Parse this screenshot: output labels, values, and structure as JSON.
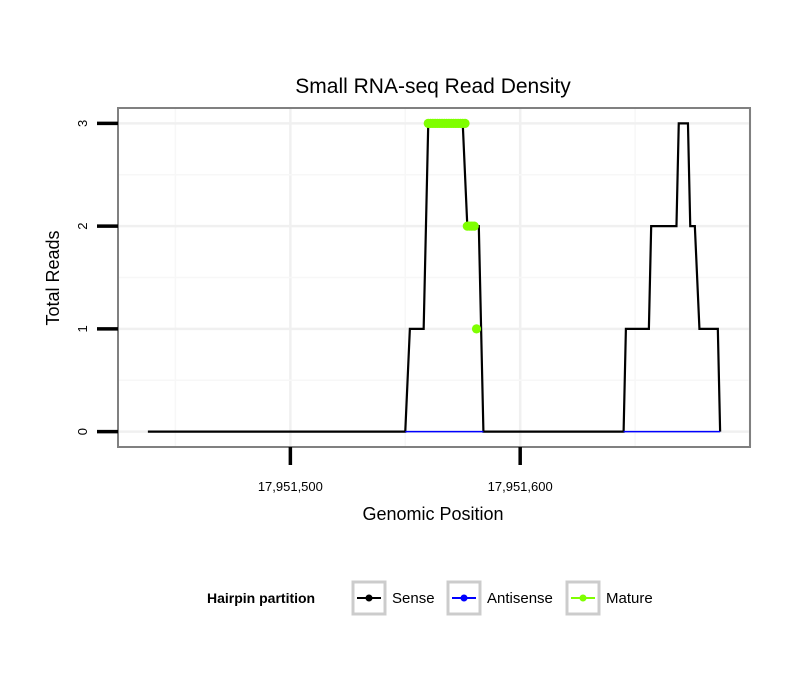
{
  "chart_data": {
    "type": "line",
    "title": "Small RNA-seq Read Density",
    "xlabel": "Genomic Position",
    "ylabel": "Total Reads",
    "xlim": [
      17951425,
      17951700
    ],
    "ylim": [
      -0.15,
      3.15
    ],
    "x_ticks": [
      17951500,
      17951600
    ],
    "x_tick_labels": [
      "17,951,500",
      "17,951,600"
    ],
    "y_ticks": [
      0,
      1,
      2,
      3
    ],
    "y_tick_labels": [
      "0",
      "1",
      "2",
      "3"
    ],
    "grid": true,
    "legend": {
      "title": "Hairpin partition",
      "position": "bottom",
      "entries": [
        "Sense",
        "Antisense",
        "Mature"
      ]
    },
    "series": [
      {
        "name": "Sense",
        "color": "#000000",
        "points": [
          [
            17951438,
            0
          ],
          [
            17951550,
            0
          ],
          [
            17951552,
            1
          ],
          [
            17951558,
            1
          ],
          [
            17951560,
            3
          ],
          [
            17951575,
            3
          ],
          [
            17951577,
            2
          ],
          [
            17951582,
            2
          ],
          [
            17951584,
            0
          ],
          [
            17951645,
            0
          ],
          [
            17951646,
            1
          ],
          [
            17951656,
            1
          ],
          [
            17951657,
            2
          ],
          [
            17951668,
            2
          ],
          [
            17951669,
            3
          ],
          [
            17951673,
            3
          ],
          [
            17951674,
            2
          ],
          [
            17951676,
            2
          ],
          [
            17951678,
            1
          ],
          [
            17951686,
            1
          ],
          [
            17951687,
            0
          ]
        ]
      },
      {
        "name": "Antisense",
        "color": "#0000ff",
        "points": [
          [
            17951550,
            0
          ],
          [
            17951584,
            0
          ],
          [
            17951645,
            0
          ],
          [
            17951687,
            0
          ]
        ]
      },
      {
        "name": "Mature",
        "color": "#7fff00",
        "points": [
          [
            17951560,
            3
          ],
          [
            17951561,
            3
          ],
          [
            17951562,
            3
          ],
          [
            17951563,
            3
          ],
          [
            17951564,
            3
          ],
          [
            17951565,
            3
          ],
          [
            17951566,
            3
          ],
          [
            17951567,
            3
          ],
          [
            17951568,
            3
          ],
          [
            17951569,
            3
          ],
          [
            17951570,
            3
          ],
          [
            17951571,
            3
          ],
          [
            17951572,
            3
          ],
          [
            17951573,
            3
          ],
          [
            17951574,
            3
          ],
          [
            17951575,
            3
          ],
          [
            17951576,
            3
          ],
          [
            17951577,
            2
          ],
          [
            17951578,
            2
          ],
          [
            17951579,
            2
          ],
          [
            17951580,
            2
          ],
          [
            17951581,
            1
          ]
        ]
      }
    ]
  }
}
